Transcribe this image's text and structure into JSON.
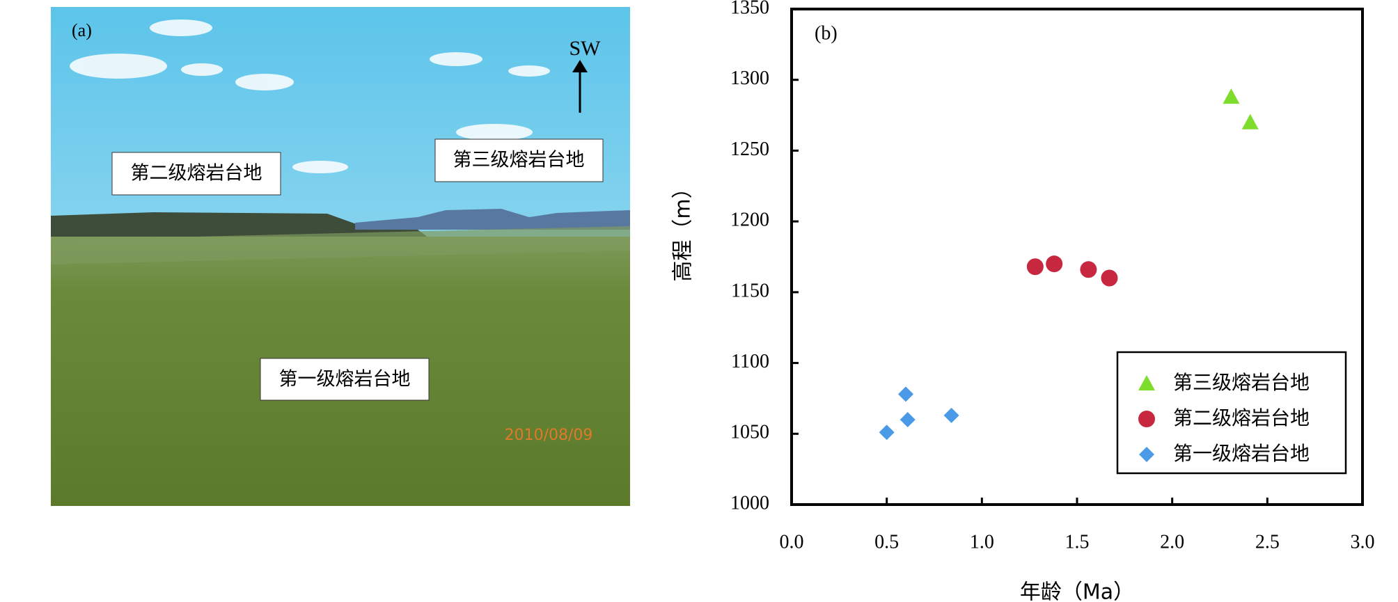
{
  "panel_a": {
    "label": "(a)",
    "direction": "SW",
    "labels": [
      "第二级熔岩台地",
      "第三级熔岩台地",
      "第一级熔岩台地"
    ],
    "date": "2010/08/09"
  },
  "chart_data": {
    "type": "scatter",
    "panel_label": "(b)",
    "x_label": "年龄（Ma）",
    "y_label": "高程（m）",
    "xlim": [
      0,
      3
    ],
    "ylim": [
      1000,
      1350
    ],
    "xticks": [
      {
        "value": 0,
        "label": "0.0"
      },
      {
        "value": 0.5,
        "label": "0.5"
      },
      {
        "value": 1,
        "label": "1.0"
      },
      {
        "value": 1.5,
        "label": "1.5"
      },
      {
        "value": 2,
        "label": "2.0"
      },
      {
        "value": 2.5,
        "label": "2.5"
      },
      {
        "value": 3,
        "label": "3.0"
      }
    ],
    "yticks": [
      1000,
      1050,
      1100,
      1150,
      1200,
      1250,
      1300,
      1350
    ],
    "legend": "lower-right",
    "series": [
      {
        "name": "第三级熔岩台地",
        "color": "#7ddc2c",
        "marker": "triangle",
        "x": [
          2.31,
          2.41
        ],
        "values": [
          1288,
          1270
        ]
      },
      {
        "name": "第二级熔岩台地",
        "color": "#c8283f",
        "marker": "circle",
        "x": [
          1.28,
          1.38,
          1.56,
          1.67
        ],
        "values": [
          1168,
          1170,
          1166,
          1160
        ]
      },
      {
        "name": "第一级熔岩台地",
        "color": "#4a9ae8",
        "marker": "diamond",
        "x": [
          0.5,
          0.6,
          0.61,
          0.84
        ],
        "values": [
          1051,
          1078,
          1060,
          1063
        ]
      }
    ]
  }
}
